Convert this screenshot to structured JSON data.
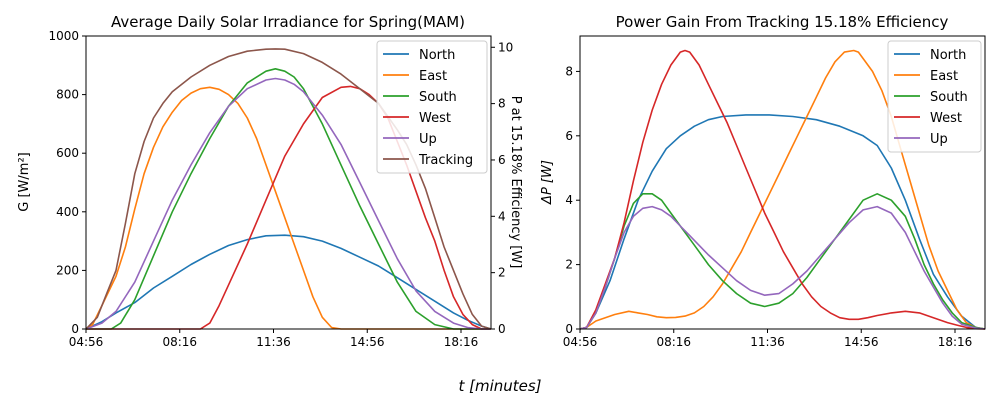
{
  "figure_xlabel": "t [minutes]",
  "chart_data": [
    {
      "type": "line",
      "title": "Average Daily Solar Irradiance for Spring(MAM)",
      "ylabel": "G [W/m²]",
      "y2label": "P at 15.18% Efficiency [W]",
      "xlim": [
        296,
        1160
      ],
      "ylim": [
        0,
        1000
      ],
      "y2lim": [
        0,
        10.4
      ],
      "xticks": [
        296,
        496,
        696,
        896,
        1096
      ],
      "xtick_labels": [
        "04:56",
        "08:16",
        "11:36",
        "14:56",
        "18:16"
      ],
      "yticks": [
        0,
        200,
        400,
        600,
        800,
        1000
      ],
      "ytick_labels": [
        "0",
        "200",
        "400",
        "600",
        "800",
        "1000"
      ],
      "y2ticks": [
        0,
        2,
        4,
        6,
        8,
        10
      ],
      "y2tick_labels": [
        "0",
        "2",
        "4",
        "6",
        "8",
        "10"
      ],
      "legend_position": "top-right",
      "grid": false,
      "series": [
        {
          "name": "North",
          "color": "#1f77b4",
          "x": [
            296,
            330,
            360,
            400,
            440,
            480,
            520,
            560,
            600,
            640,
            680,
            720,
            760,
            800,
            840,
            880,
            920,
            960,
            1000,
            1040,
            1080,
            1110,
            1140,
            1160
          ],
          "y": [
            0,
            25,
            55,
            90,
            140,
            180,
            220,
            255,
            285,
            305,
            318,
            320,
            315,
            300,
            275,
            245,
            215,
            175,
            135,
            95,
            55,
            30,
            10,
            0
          ]
        },
        {
          "name": "East",
          "color": "#ff7f0e",
          "x": [
            296,
            310,
            330,
            360,
            380,
            400,
            420,
            440,
            460,
            480,
            500,
            520,
            540,
            560,
            580,
            600,
            620,
            640,
            660,
            680,
            700,
            720,
            740,
            760,
            780,
            800,
            820,
            840,
            860,
            880,
            1160
          ],
          "y": [
            0,
            15,
            80,
            180,
            280,
            410,
            530,
            620,
            690,
            740,
            780,
            805,
            820,
            825,
            818,
            800,
            770,
            720,
            650,
            560,
            470,
            380,
            290,
            200,
            110,
            40,
            5,
            0,
            0,
            0,
            0
          ]
        },
        {
          "name": "South",
          "color": "#2ca02c",
          "x": [
            296,
            350,
            370,
            400,
            440,
            480,
            520,
            560,
            600,
            640,
            680,
            700,
            720,
            740,
            760,
            800,
            840,
            880,
            920,
            960,
            1000,
            1040,
            1080,
            1110,
            1140,
            1160
          ],
          "y": [
            0,
            0,
            20,
            100,
            250,
            400,
            530,
            650,
            760,
            840,
            880,
            888,
            880,
            860,
            820,
            700,
            560,
            420,
            290,
            160,
            60,
            15,
            0,
            0,
            0,
            0
          ]
        },
        {
          "name": "West",
          "color": "#d62728",
          "x": [
            296,
            540,
            560,
            580,
            600,
            640,
            680,
            720,
            760,
            800,
            840,
            860,
            880,
            900,
            920,
            940,
            960,
            980,
            1000,
            1020,
            1040,
            1060,
            1080,
            1100,
            1120,
            1140,
            1160
          ],
          "y": [
            0,
            0,
            20,
            80,
            150,
            290,
            440,
            590,
            700,
            790,
            825,
            828,
            820,
            800,
            770,
            720,
            640,
            560,
            470,
            380,
            300,
            200,
            110,
            50,
            15,
            0,
            0
          ]
        },
        {
          "name": "Up",
          "color": "#9467bd",
          "x": [
            296,
            330,
            360,
            400,
            440,
            480,
            520,
            560,
            600,
            640,
            680,
            700,
            720,
            740,
            760,
            800,
            840,
            880,
            920,
            960,
            1000,
            1040,
            1080,
            1110,
            1140,
            1160
          ],
          "y": [
            0,
            20,
            60,
            160,
            300,
            440,
            560,
            670,
            760,
            820,
            850,
            855,
            850,
            835,
            810,
            730,
            630,
            500,
            370,
            240,
            130,
            60,
            20,
            5,
            0,
            0
          ]
        },
        {
          "name": "Tracking",
          "color": "#8c564b",
          "x": [
            296,
            320,
            340,
            360,
            380,
            400,
            420,
            440,
            460,
            480,
            520,
            560,
            600,
            640,
            680,
            700,
            720,
            760,
            800,
            840,
            880,
            920,
            960,
            980,
            1000,
            1020,
            1040,
            1060,
            1080,
            1100,
            1120,
            1140,
            1160
          ],
          "y": [
            0,
            40,
            120,
            200,
            360,
            530,
            640,
            720,
            770,
            810,
            860,
            900,
            930,
            948,
            955,
            956,
            955,
            940,
            910,
            870,
            820,
            770,
            680,
            630,
            560,
            480,
            380,
            280,
            200,
            120,
            50,
            10,
            0
          ]
        }
      ]
    },
    {
      "type": "line",
      "title": "Power Gain From Tracking 15.18% Efficiency",
      "ylabel": "ΔP [W]",
      "xlim": [
        296,
        1160
      ],
      "ylim": [
        0,
        9.1
      ],
      "xticks": [
        296,
        496,
        696,
        896,
        1096
      ],
      "xtick_labels": [
        "04:56",
        "08:16",
        "11:36",
        "14:56",
        "18:16"
      ],
      "yticks": [
        0,
        2,
        4,
        6,
        8
      ],
      "ytick_labels": [
        "0",
        "2",
        "4",
        "6",
        "8"
      ],
      "legend_position": "top-right",
      "grid": false,
      "series": [
        {
          "name": "North",
          "color": "#1f77b4",
          "x": [
            296,
            310,
            330,
            360,
            390,
            420,
            450,
            480,
            510,
            540,
            570,
            600,
            650,
            700,
            750,
            800,
            850,
            900,
            930,
            960,
            990,
            1020,
            1050,
            1080,
            1110,
            1140,
            1160
          ],
          "y": [
            0,
            0.05,
            0.5,
            1.5,
            2.8,
            4.0,
            4.9,
            5.6,
            6.0,
            6.3,
            6.5,
            6.6,
            6.65,
            6.65,
            6.6,
            6.5,
            6.3,
            6.0,
            5.7,
            5.0,
            4.0,
            2.8,
            1.7,
            1.0,
            0.4,
            0.05,
            0
          ]
        },
        {
          "name": "East",
          "color": "#ff7f0e",
          "x": [
            296,
            310,
            330,
            350,
            370,
            400,
            420,
            440,
            460,
            480,
            500,
            520,
            540,
            560,
            580,
            600,
            620,
            640,
            660,
            680,
            700,
            720,
            740,
            760,
            780,
            800,
            820,
            840,
            860,
            880,
            890,
            900,
            920,
            940,
            960,
            980,
            1000,
            1020,
            1040,
            1060,
            1080,
            1100,
            1120,
            1140,
            1160
          ],
          "y": [
            0,
            0.05,
            0.25,
            0.35,
            0.45,
            0.55,
            0.5,
            0.45,
            0.38,
            0.35,
            0.36,
            0.4,
            0.5,
            0.7,
            1.0,
            1.4,
            1.9,
            2.4,
            3.0,
            3.6,
            4.2,
            4.8,
            5.4,
            6.0,
            6.6,
            7.2,
            7.8,
            8.3,
            8.6,
            8.65,
            8.6,
            8.4,
            8.0,
            7.4,
            6.6,
            5.6,
            4.6,
            3.6,
            2.6,
            1.8,
            1.2,
            0.6,
            0.2,
            0.05,
            0
          ]
        },
        {
          "name": "South",
          "color": "#2ca02c",
          "x": [
            296,
            310,
            330,
            350,
            370,
            390,
            410,
            430,
            450,
            470,
            490,
            510,
            530,
            550,
            570,
            600,
            630,
            660,
            690,
            720,
            750,
            780,
            810,
            840,
            870,
            900,
            930,
            960,
            990,
            1010,
            1030,
            1050,
            1070,
            1090,
            1110,
            1140,
            1160
          ],
          "y": [
            0,
            0.05,
            0.5,
            1.3,
            2.2,
            3.2,
            3.9,
            4.2,
            4.2,
            4.0,
            3.6,
            3.2,
            2.8,
            2.4,
            2.0,
            1.5,
            1.1,
            0.8,
            0.7,
            0.8,
            1.1,
            1.6,
            2.2,
            2.8,
            3.4,
            4.0,
            4.2,
            4.0,
            3.5,
            2.8,
            2.0,
            1.4,
            0.9,
            0.5,
            0.2,
            0.05,
            0
          ]
        },
        {
          "name": "West",
          "color": "#d62728",
          "x": [
            296,
            310,
            330,
            350,
            370,
            390,
            410,
            430,
            450,
            470,
            490,
            510,
            520,
            530,
            550,
            570,
            590,
            610,
            630,
            650,
            670,
            690,
            710,
            730,
            750,
            770,
            790,
            810,
            830,
            850,
            870,
            890,
            910,
            930,
            960,
            990,
            1020,
            1050,
            1080,
            1100,
            1120,
            1140,
            1160
          ],
          "y": [
            0,
            0.05,
            0.6,
            1.4,
            2.2,
            3.3,
            4.6,
            5.8,
            6.8,
            7.6,
            8.2,
            8.6,
            8.65,
            8.6,
            8.2,
            7.6,
            7.0,
            6.4,
            5.7,
            5.0,
            4.3,
            3.6,
            3.0,
            2.4,
            1.9,
            1.4,
            1.0,
            0.7,
            0.5,
            0.35,
            0.3,
            0.3,
            0.35,
            0.42,
            0.5,
            0.55,
            0.5,
            0.35,
            0.2,
            0.12,
            0.05,
            0.01,
            0
          ]
        },
        {
          "name": "Up",
          "color": "#9467bd",
          "x": [
            296,
            310,
            330,
            350,
            370,
            390,
            410,
            430,
            450,
            470,
            490,
            510,
            530,
            550,
            570,
            600,
            630,
            660,
            690,
            720,
            750,
            780,
            810,
            840,
            870,
            900,
            930,
            960,
            990,
            1010,
            1030,
            1050,
            1070,
            1090,
            1110,
            1140,
            1160
          ],
          "y": [
            0,
            0.05,
            0.5,
            1.3,
            2.2,
            3.0,
            3.5,
            3.75,
            3.8,
            3.7,
            3.5,
            3.2,
            2.9,
            2.6,
            2.3,
            1.9,
            1.5,
            1.2,
            1.05,
            1.1,
            1.4,
            1.8,
            2.3,
            2.8,
            3.3,
            3.7,
            3.8,
            3.6,
            3.0,
            2.4,
            1.8,
            1.3,
            0.8,
            0.4,
            0.15,
            0.03,
            0
          ]
        }
      ]
    }
  ]
}
